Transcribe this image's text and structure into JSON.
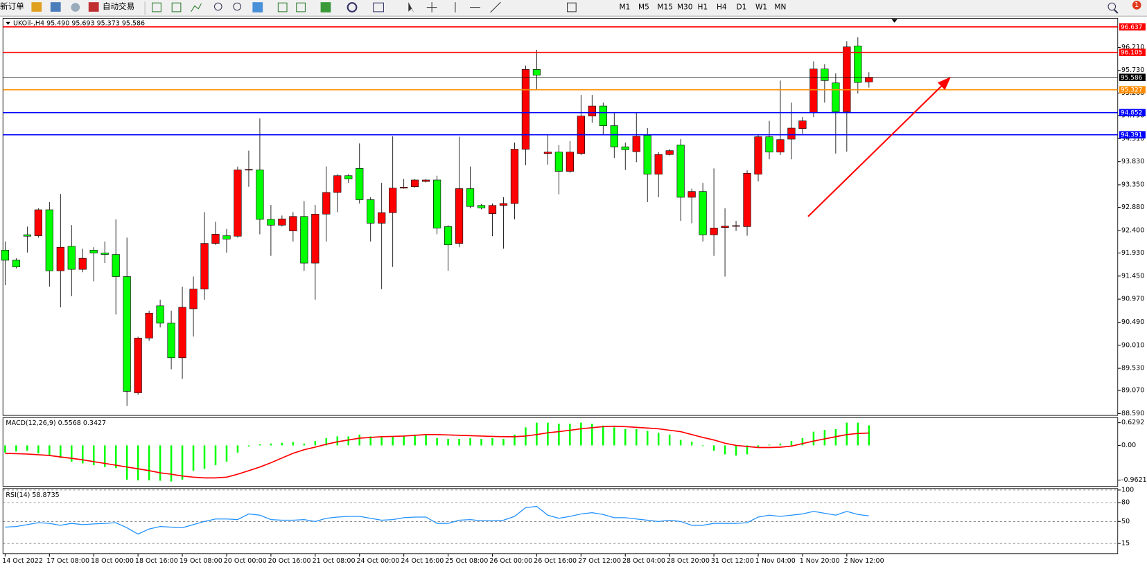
{
  "toolbar": {
    "new_order": "新订单",
    "auto_trading": "自动交易",
    "timeframes": [
      "M1",
      "M5",
      "M15",
      "M30",
      "H1",
      "H4",
      "D1",
      "W1",
      "MN"
    ],
    "badge": "1"
  },
  "chart_data": [
    {
      "type": "candlestick",
      "title": "UKOil-,H4  95.490 95.693 95.373 95.586",
      "categories": [
        "14 Oct 2022",
        null,
        null,
        null,
        "17 Oct 08:00",
        null,
        null,
        null,
        "18 Oct 00:00",
        null,
        null,
        null,
        "18 Oct 16:00",
        null,
        null,
        null,
        "19 Oct 08:00",
        null,
        null,
        null,
        "20 Oct 00:00",
        null,
        null,
        null,
        "20 Oct 16:00",
        null,
        null,
        null,
        "21 Oct 08:00",
        null,
        null,
        null,
        "24 Oct 00:00",
        null,
        null,
        null,
        "24 Oct 16:00",
        null,
        null,
        null,
        "25 Oct 08:00",
        null,
        null,
        null,
        "26 Oct 00:00",
        null,
        null,
        null,
        "26 Oct 16:00",
        null,
        null,
        null,
        "27 Oct 12:00",
        null,
        null,
        null,
        "28 Oct 04:00",
        null,
        null,
        null,
        "28 Oct 20:00",
        null,
        null,
        null,
        "31 Oct 12:00",
        null,
        null,
        null,
        "1 Nov 04:00",
        null,
        null,
        null,
        "1 Nov 20:00",
        null,
        null,
        null,
        "2 Nov 12:00",
        null,
        null
      ],
      "open": [
        91.99,
        91.78,
        92.31,
        92.29,
        92.83,
        91.56,
        92.07,
        91.59,
        91.99,
        91.93,
        91.9,
        91.44,
        89.02,
        90.16,
        90.83,
        90.47,
        89.75,
        90.77,
        91.18,
        92.13,
        92.29,
        92.28,
        93.66,
        93.66,
        92.63,
        92.51,
        92.39,
        92.69,
        91.72,
        92.74,
        93.19,
        93.54,
        93.69,
        93.04,
        92.55,
        92.77,
        93.28,
        93.31,
        93.42,
        93.45,
        92.48,
        92.13,
        93.27,
        92.92,
        92.75,
        92.92,
        92.96,
        94.09,
        95.75,
        94.0,
        94.03,
        93.63,
        94.0,
        94.78,
        94.99,
        94.58,
        94.14,
        94.04,
        94.38,
        93.57,
        93.98,
        94.18,
        93.09,
        93.21,
        92.31,
        92.46,
        92.5,
        92.48,
        93.57,
        94.35,
        94.03,
        94.3,
        94.52,
        94.85,
        95.76,
        95.47,
        94.87,
        96.24,
        95.49
      ],
      "high": [
        92.17,
        91.82,
        92.48,
        92.86,
        92.99,
        93.16,
        92.51,
        92.02,
        92.05,
        92.17,
        92.63,
        92.25,
        90.19,
        90.73,
        90.96,
        90.73,
        91.23,
        91.44,
        92.78,
        92.58,
        92.43,
        93.73,
        94.06,
        94.73,
        92.93,
        92.71,
        92.78,
        93.01,
        92.93,
        93.73,
        93.57,
        93.57,
        94.21,
        93.09,
        93.39,
        94.36,
        93.47,
        93.47,
        93.47,
        93.54,
        92.51,
        94.35,
        93.73,
        92.95,
        92.96,
        93.09,
        94.23,
        95.83,
        96.16,
        94.38,
        94.18,
        94.26,
        95.22,
        95.22,
        95.06,
        94.84,
        94.23,
        94.84,
        94.53,
        94.03,
        94.09,
        94.3,
        93.27,
        93.39,
        93.69,
        92.86,
        92.6,
        93.65,
        94.39,
        94.68,
        95.52,
        95.06,
        94.76,
        95.92,
        95.86,
        95.67,
        96.34,
        96.42,
        95.693
      ],
      "low": [
        91.26,
        91.61,
        91.94,
        92.25,
        91.23,
        90.8,
        91.03,
        91.53,
        91.34,
        91.72,
        90.65,
        88.75,
        88.98,
        90.1,
        90.38,
        89.51,
        89.31,
        90.19,
        90.96,
        92.1,
        91.94,
        92.25,
        93.31,
        92.32,
        91.87,
        92.48,
        92.17,
        91.56,
        90.96,
        92.17,
        92.78,
        93.39,
        92.96,
        92.17,
        91.18,
        91.64,
        93.27,
        93.29,
        93.4,
        92.32,
        91.56,
        92.05,
        92.86,
        92.84,
        92.28,
        92.02,
        92.63,
        93.76,
        95.34,
        93.77,
        93.15,
        93.6,
        93.97,
        94.64,
        94.38,
        93.91,
        93.66,
        93.82,
        92.99,
        93.09,
        93.96,
        92.6,
        92.55,
        92.17,
        91.87,
        91.44,
        92.39,
        92.29,
        93.42,
        93.88,
        93.97,
        93.88,
        94.41,
        94.76,
        95.06,
        94.0,
        94.04,
        95.25,
        95.373
      ],
      "close": [
        91.78,
        91.64,
        92.28,
        92.83,
        91.56,
        92.05,
        91.59,
        91.82,
        91.93,
        91.9,
        91.44,
        89.05,
        90.16,
        90.68,
        90.47,
        89.75,
        90.8,
        91.18,
        92.13,
        92.32,
        92.22,
        93.66,
        93.67,
        92.63,
        92.51,
        92.64,
        92.69,
        91.72,
        92.74,
        93.19,
        93.54,
        93.47,
        93.04,
        92.55,
        92.77,
        93.28,
        93.3,
        93.45,
        93.45,
        92.45,
        92.1,
        93.27,
        92.9,
        92.87,
        92.92,
        92.96,
        94.09,
        95.75,
        95.63,
        94.03,
        93.63,
        94.03,
        94.78,
        94.99,
        94.58,
        94.14,
        94.08,
        94.36,
        93.57,
        93.98,
        94.06,
        93.09,
        93.21,
        92.31,
        92.45,
        92.49,
        92.5,
        93.59,
        94.35,
        94.03,
        94.29,
        94.53,
        94.68,
        95.76,
        95.52,
        94.87,
        96.22,
        95.48,
        95.586
      ],
      "up_color": "#ff0000",
      "down_color": "#00ff00",
      "ylim": [
        88.55,
        96.8
      ],
      "yticks": [
        {
          "value": 96.21,
          "label": "96.210"
        },
        {
          "value": 95.73,
          "label": "95.730"
        },
        {
          "value": 95.26,
          "label": "95.260"
        },
        {
          "value": 94.79,
          "label": "94.790"
        },
        {
          "value": 94.31,
          "label": "94.310"
        },
        {
          "value": 93.83,
          "label": "93.830"
        },
        {
          "value": 93.35,
          "label": "93.350"
        },
        {
          "value": 92.88,
          "label": "92.880"
        },
        {
          "value": 92.4,
          "label": "92.400"
        },
        {
          "value": 91.93,
          "label": "91.930"
        },
        {
          "value": 91.45,
          "label": "91.450"
        },
        {
          "value": 90.97,
          "label": "90.970"
        },
        {
          "value": 90.49,
          "label": "90.490"
        },
        {
          "value": 90.01,
          "label": "90.010"
        },
        {
          "value": 89.53,
          "label": "89.530"
        },
        {
          "value": 89.07,
          "label": "89.070"
        },
        {
          "value": 88.59,
          "label": "88.590"
        }
      ],
      "hlines": [
        {
          "value": 96.637,
          "color": "#ff0000"
        },
        {
          "value": 96.105,
          "color": "#ff0000"
        },
        {
          "value": 95.586,
          "color": "#000000"
        },
        {
          "value": 95.327,
          "color": "#ff8c00"
        },
        {
          "value": 94.852,
          "color": "#0000ff"
        },
        {
          "value": 94.391,
          "color": "#0000ff"
        }
      ]
    },
    {
      "type": "macd",
      "title": "MACD(12,26,9) 0.5568 0.3427",
      "series": [
        {
          "style": "bar",
          "color": "#00ff00",
          "values": [
            -0.2,
            -0.17,
            -0.15,
            -0.22,
            -0.27,
            -0.35,
            -0.45,
            -0.5,
            -0.55,
            -0.6,
            -0.63,
            -0.95,
            -0.97,
            -0.97,
            -0.98,
            -1.0,
            -0.95,
            -0.7,
            -0.65,
            -0.55,
            -0.45,
            -0.2,
            -0.03,
            0.03,
            0.05,
            0.07,
            0.09,
            0.05,
            0.12,
            0.2,
            0.25,
            0.25,
            0.3,
            0.25,
            0.22,
            0.25,
            0.27,
            0.3,
            0.3,
            0.2,
            0.18,
            0.18,
            0.2,
            0.18,
            0.2,
            0.18,
            0.3,
            0.5,
            0.63,
            0.63,
            0.6,
            0.6,
            0.63,
            0.6,
            0.55,
            0.5,
            0.45,
            0.45,
            0.4,
            0.35,
            0.3,
            0.15,
            0.1,
            -0.02,
            -0.15,
            -0.25,
            -0.28,
            -0.25,
            -0.05,
            0.02,
            0.05,
            0.12,
            0.2,
            0.38,
            0.43,
            0.45,
            0.63,
            0.63,
            0.5568
          ]
        },
        {
          "style": "line",
          "color": "#ff0000",
          "values": [
            -0.22,
            -0.23,
            -0.24,
            -0.26,
            -0.28,
            -0.32,
            -0.36,
            -0.4,
            -0.45,
            -0.5,
            -0.55,
            -0.6,
            -0.65,
            -0.7,
            -0.76,
            -0.8,
            -0.85,
            -0.88,
            -0.9,
            -0.9,
            -0.88,
            -0.8,
            -0.7,
            -0.6,
            -0.48,
            -0.35,
            -0.22,
            -0.12,
            -0.05,
            0.03,
            0.1,
            0.15,
            0.2,
            0.22,
            0.24,
            0.25,
            0.26,
            0.28,
            0.3,
            0.3,
            0.29,
            0.28,
            0.27,
            0.26,
            0.25,
            0.24,
            0.24,
            0.26,
            0.3,
            0.35,
            0.38,
            0.42,
            0.46,
            0.49,
            0.52,
            0.53,
            0.52,
            0.5,
            0.48,
            0.46,
            0.42,
            0.38,
            0.3,
            0.22,
            0.15,
            0.06,
            0.0,
            -0.03,
            -0.06,
            -0.06,
            -0.05,
            -0.02,
            0.05,
            0.12,
            0.18,
            0.24,
            0.3,
            0.33,
            0.3427
          ]
        }
      ],
      "ylim": [
        -1.136,
        0.75
      ],
      "yticks": [
        0.6292,
        {
          "value": 0,
          "label": "0.00"
        },
        -0.9621
      ]
    },
    {
      "type": "rsi",
      "title": "RSI(14) 58.8735",
      "color": "#1e90ff",
      "values": [
        41,
        42,
        45,
        48,
        47,
        44,
        47,
        45,
        46,
        47,
        48,
        40,
        30,
        38,
        42,
        41,
        40,
        45,
        50,
        54,
        54,
        53,
        62,
        60,
        53,
        52,
        52,
        53,
        50,
        55,
        57,
        58,
        58,
        55,
        52,
        53,
        56,
        57,
        57,
        47,
        47,
        52,
        53,
        51,
        51,
        52,
        58,
        72,
        74,
        60,
        55,
        58,
        62,
        64,
        61,
        56,
        56,
        54,
        52,
        50,
        52,
        50,
        44,
        44,
        47,
        47,
        47,
        48,
        57,
        60,
        58,
        60,
        62,
        66,
        63,
        60,
        66,
        61,
        58.8735
      ],
      "ylim": [
        0,
        100
      ],
      "yticks": [
        100,
        80,
        50,
        15
      ]
    }
  ]
}
